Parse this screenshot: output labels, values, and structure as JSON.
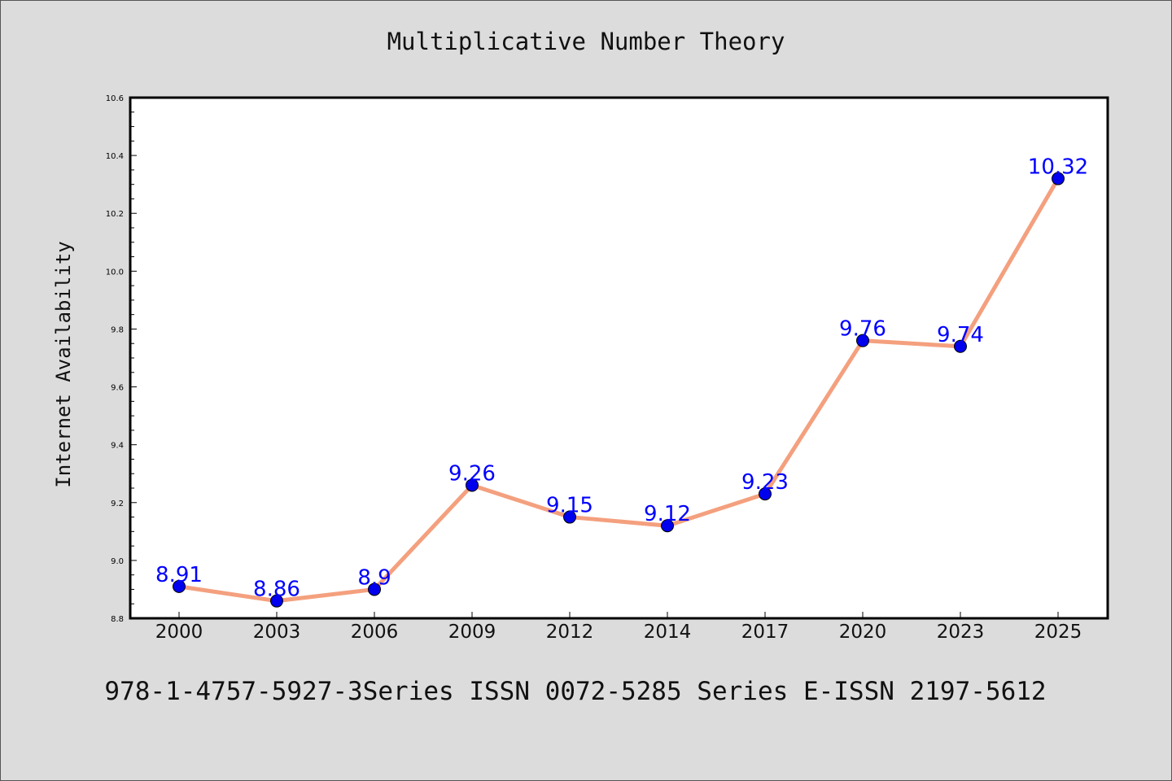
{
  "page": {
    "title": "Multiplicative Number Theory",
    "caption": "978-1-4757-5927-3Series ISSN 0072-5285 Series E-ISSN 2197-5612"
  },
  "chart_data": {
    "type": "line",
    "title": "Multiplicative Number Theory",
    "xlabel": "",
    "ylabel": "Internet Availability",
    "categories": [
      "2000",
      "2003",
      "2006",
      "2009",
      "2012",
      "2014",
      "2017",
      "2020",
      "2023",
      "2025"
    ],
    "series": [
      {
        "values": [
          8.91,
          8.86,
          8.9,
          9.26,
          9.15,
          9.12,
          9.23,
          9.76,
          9.74,
          10.32
        ],
        "data_labels": [
          "8.91",
          "8.86",
          "8.9",
          "9.26",
          "9.15",
          "9.12",
          "9.23",
          "9.76",
          "9.74",
          "10.32"
        ]
      }
    ],
    "ylim": [
      8.8,
      10.6
    ],
    "yticks": [
      "8.8",
      "9.0",
      "9.2",
      "9.4",
      "9.6",
      "9.8",
      "10.0",
      "10.2",
      "10.4",
      "10.6"
    ],
    "grid": false,
    "colors": {
      "line": "#f4a07e",
      "marker": "#0000ee",
      "label": "#0000ff",
      "plot_bg": "#ffffff",
      "page_bg": "#dcdcdc"
    }
  }
}
